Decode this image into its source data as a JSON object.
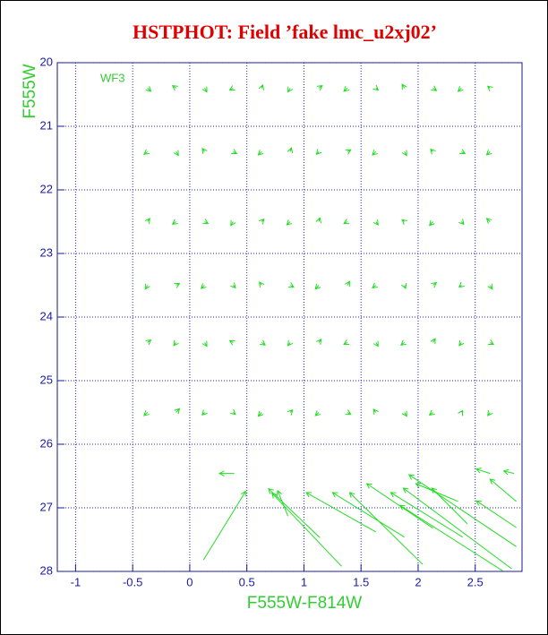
{
  "chart_data": {
    "type": "quiver",
    "title": "HSTPHOT: Field ’fake lmc_u2xj02’",
    "x_label": "F555W-F814W",
    "y_label": "F555W",
    "annotation": "WF3",
    "color": "#22dd22",
    "grid": true,
    "y_inverted": true,
    "xlim": [
      -1.16,
      2.91
    ],
    "ylim": [
      20,
      28
    ],
    "xticks": [
      -1,
      -0.5,
      0,
      0.5,
      1,
      1.5,
      2,
      2.5
    ],
    "yticks": [
      20,
      21,
      22,
      23,
      24,
      25,
      26,
      27,
      28
    ],
    "x": [
      -0.37,
      -0.12,
      0.13,
      0.38,
      0.63,
      0.88,
      1.13,
      1.38,
      1.63,
      1.88,
      2.13,
      2.38,
      2.63,
      -0.37,
      -0.12,
      0.13,
      0.38,
      0.63,
      0.88,
      1.13,
      1.38,
      1.63,
      1.88,
      2.13,
      2.38,
      2.63,
      -0.37,
      -0.12,
      0.13,
      0.38,
      0.63,
      0.88,
      1.13,
      1.38,
      1.63,
      1.88,
      2.13,
      2.38,
      2.63,
      -0.37,
      -0.12,
      0.13,
      0.38,
      0.63,
      0.88,
      1.13,
      1.38,
      1.63,
      1.88,
      2.13,
      2.38,
      2.63,
      -0.37,
      -0.12,
      0.13,
      0.38,
      0.63,
      0.88,
      1.13,
      1.38,
      1.63,
      1.88,
      2.13,
      2.38,
      2.63,
      -0.37,
      -0.12,
      0.13,
      0.38,
      0.63,
      0.88,
      1.13,
      1.38,
      1.63,
      1.88,
      2.13,
      2.38,
      2.63,
      0.12,
      1.14,
      1.33,
      1.63,
      1.88,
      2.04,
      2.39,
      2.86,
      2.82,
      2.86,
      2.43,
      2.35,
      2.13,
      2.74,
      0.86,
      0.39,
      2.63,
      2.84,
      2.86
    ],
    "y": [
      20.4,
      20.4,
      20.4,
      20.4,
      20.4,
      20.4,
      20.4,
      20.4,
      20.4,
      20.4,
      20.4,
      20.4,
      20.4,
      21.4,
      21.4,
      21.4,
      21.4,
      21.4,
      21.4,
      21.4,
      21.4,
      21.4,
      21.4,
      21.4,
      21.4,
      21.4,
      22.5,
      22.5,
      22.5,
      22.5,
      22.5,
      22.5,
      22.5,
      22.5,
      22.5,
      22.5,
      22.5,
      22.5,
      22.5,
      23.5,
      23.5,
      23.5,
      23.5,
      23.5,
      23.5,
      23.5,
      23.5,
      23.5,
      23.5,
      23.5,
      23.5,
      23.5,
      24.4,
      24.4,
      24.4,
      24.4,
      24.4,
      24.4,
      24.4,
      24.4,
      24.4,
      24.4,
      24.4,
      24.4,
      24.4,
      25.5,
      25.5,
      25.5,
      25.5,
      25.5,
      25.5,
      25.5,
      25.5,
      25.5,
      25.5,
      25.5,
      25.5,
      25.5,
      27.82,
      27.47,
      27.92,
      27.38,
      27.46,
      27.89,
      27.46,
      27.61,
      27.96,
      26.9,
      27.25,
      26.9,
      27.32,
      27.99,
      27.13,
      26.46,
      26.46,
      26.46,
      27.31
    ],
    "u": [
      0.03,
      -0.03,
      0.02,
      -0.03,
      0.01,
      -0.02,
      0.03,
      -0.03,
      0.02,
      -0.02,
      0.03,
      -0.03,
      -0.02,
      -0.03,
      0.02,
      -0.02,
      0.03,
      -0.03,
      0.01,
      -0.02,
      0.03,
      -0.03,
      0.02,
      -0.02,
      0.03,
      -0.03,
      0.02,
      -0.03,
      0.03,
      -0.02,
      0.02,
      -0.03,
      0.01,
      -0.03,
      0.02,
      -0.02,
      -0.03,
      0.02,
      -0.03,
      -0.02,
      0.03,
      -0.03,
      0.02,
      -0.02,
      0.03,
      -0.03,
      0.02,
      -0.03,
      0.01,
      0.03,
      -0.02,
      0.02,
      0.03,
      -0.02,
      0.02,
      -0.03,
      0.03,
      -0.02,
      0.02,
      -0.03,
      0.02,
      -0.03,
      0.02,
      -0.02,
      0.03,
      -0.03,
      0.03,
      -0.02,
      0.02,
      -0.03,
      0.02,
      -0.03,
      0.03,
      -0.02,
      0.02,
      -0.03,
      0.01,
      -0.02,
      0.37,
      -0.45,
      -0.61,
      -0.61,
      -0.63,
      -0.64,
      -0.63,
      -0.94,
      -0.95,
      -0.23,
      -0.31,
      -0.37,
      -0.58,
      -0.9,
      -0.09,
      -0.13,
      -0.12,
      -0.09,
      -0.35
    ],
    "v": [
      0.05,
      -0.04,
      0.06,
      0.03,
      -0.05,
      0.06,
      -0.04,
      0.05,
      0.03,
      -0.06,
      0.04,
      0.05,
      -0.03,
      0.04,
      0.06,
      -0.05,
      0.03,
      0.05,
      -0.06,
      0.04,
      -0.03,
      0.05,
      0.06,
      -0.04,
      0.03,
      0.05,
      -0.05,
      0.04,
      0.03,
      0.06,
      -0.04,
      0.05,
      -0.06,
      0.03,
      0.05,
      -0.03,
      0.06,
      0.04,
      -0.05,
      0.06,
      -0.03,
      0.05,
      0.04,
      -0.05,
      0.03,
      0.06,
      -0.06,
      0.04,
      0.05,
      -0.04,
      0.03,
      0.06,
      -0.04,
      0.05,
      0.06,
      -0.03,
      0.04,
      0.05,
      -0.05,
      0.03,
      0.06,
      0.04,
      -0.06,
      0.05,
      0.03,
      0.05,
      -0.06,
      0.04,
      0.03,
      0.06,
      -0.04,
      0.05,
      0.03,
      -0.05,
      0.06,
      0.04,
      -0.03,
      0.05,
      -1.08,
      -0.77,
      -1.15,
      -0.62,
      -0.7,
      -1.13,
      -0.7,
      -1.13,
      -1.27,
      -0.35,
      -0.56,
      -0.28,
      -0.7,
      -1.03,
      -0.4,
      0,
      -0.07,
      -0.04,
      -0.42
    ]
  }
}
